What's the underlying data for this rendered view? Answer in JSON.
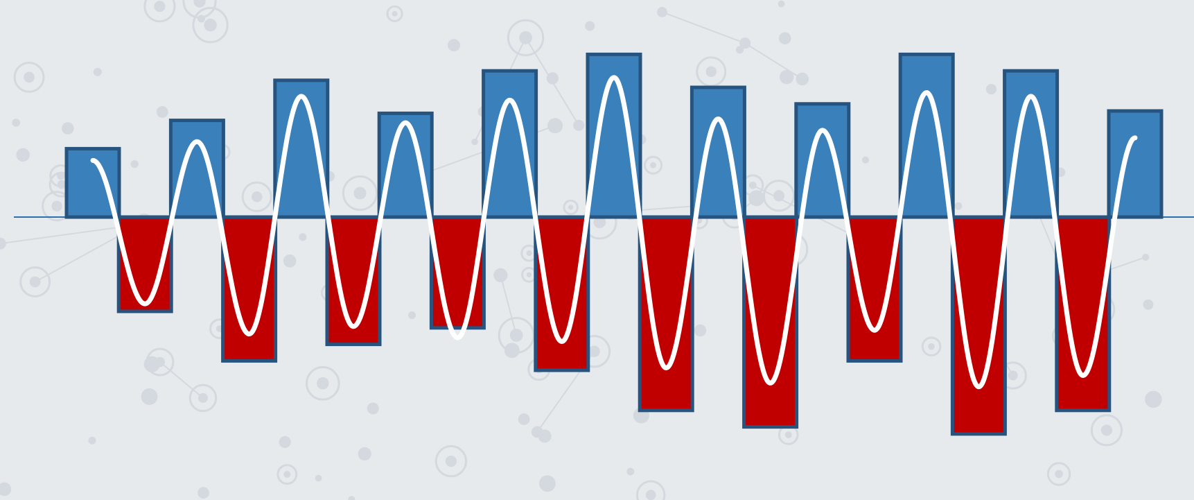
{
  "chart_data": {
    "type": "bar",
    "title": "",
    "xlabel": "",
    "ylabel": "",
    "ylim": [
      -100,
      75
    ],
    "grid": false,
    "legend": "none",
    "bars": [
      {
        "value": 29
      },
      {
        "value": -40
      },
      {
        "value": 41
      },
      {
        "value": -61
      },
      {
        "value": 58
      },
      {
        "value": -54
      },
      {
        "value": 44
      },
      {
        "value": -47
      },
      {
        "value": 62
      },
      {
        "value": -65
      },
      {
        "value": 69
      },
      {
        "value": -82
      },
      {
        "value": 55
      },
      {
        "value": -89
      },
      {
        "value": 48
      },
      {
        "value": -61
      },
      {
        "value": 69
      },
      {
        "value": -92
      },
      {
        "value": 62
      },
      {
        "value": -82
      },
      {
        "value": 45
      }
    ],
    "wave_peaks": [
      15,
      -23,
      20,
      -31,
      32,
      -29,
      25,
      -32,
      31,
      -33,
      37,
      -40,
      26,
      -44,
      23,
      -30,
      33,
      -45,
      32,
      -42,
      21
    ],
    "colors": {
      "positive": "#3a80bb",
      "negative": "#c00000",
      "bar_stroke": "#27547e",
      "wave": "#ffffff",
      "baseline": "#2e6fae",
      "background": "#e6eaed"
    }
  }
}
